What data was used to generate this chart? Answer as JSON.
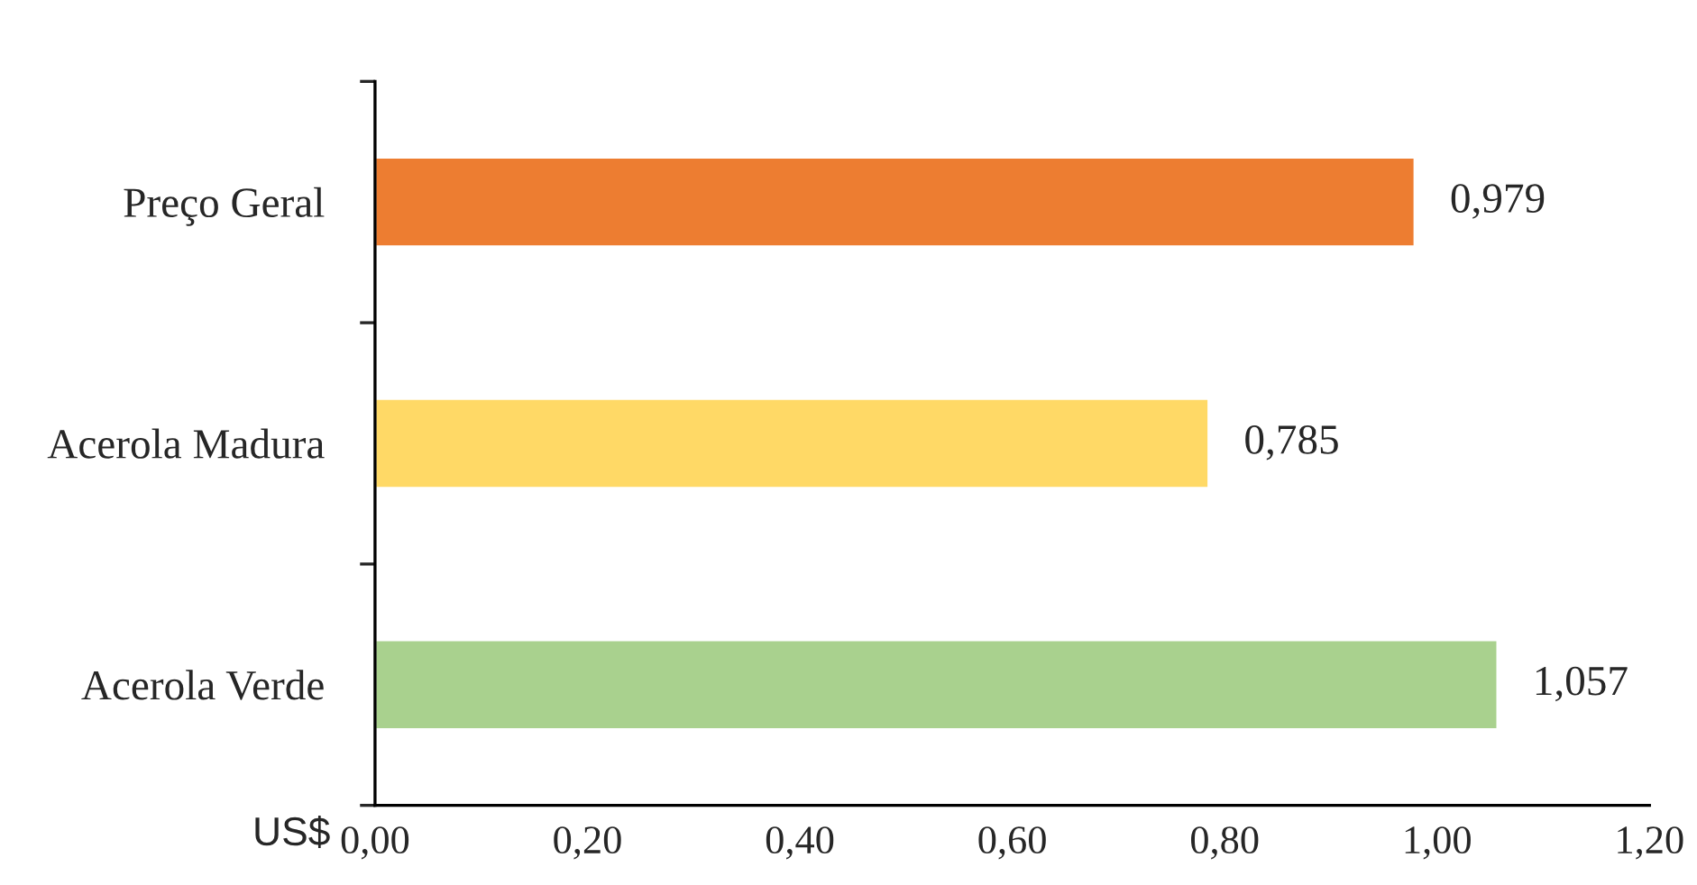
{
  "chart_data": {
    "type": "bar",
    "orientation": "horizontal",
    "xlabel": "US$",
    "categories": [
      "Preço Geral",
      "Acerola Madura",
      "Acerola Verde"
    ],
    "values": [
      0.979,
      0.785,
      1.057
    ],
    "colors": [
      "#ed7d31",
      "#ffd966",
      "#a9d18e"
    ],
    "value_labels": [
      "0,979",
      "0,785",
      "1,057"
    ],
    "xlim": [
      0,
      1.2
    ],
    "xticks": [
      {
        "value": 0,
        "label": "0,00"
      },
      {
        "value": 0.2,
        "label": "0,20"
      },
      {
        "value": 0.4,
        "label": "0,40"
      },
      {
        "value": 0.6,
        "label": "0,60"
      },
      {
        "value": 0.8,
        "label": "0,80"
      },
      {
        "value": 1.0,
        "label": "1,00"
      },
      {
        "value": 1.2,
        "label": "1,20"
      }
    ],
    "grid": false,
    "legend": false
  }
}
